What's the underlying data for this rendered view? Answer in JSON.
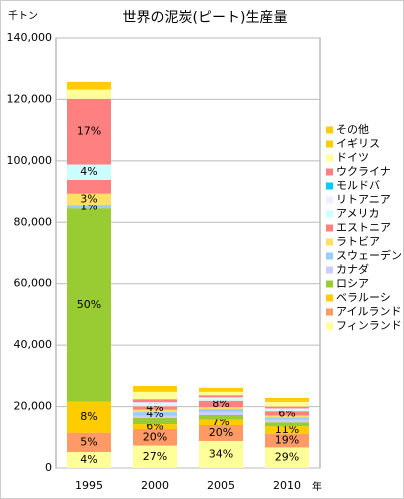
{
  "chart_data": {
    "type": "stacked_bar",
    "title": "世界の泥炭(ピート)生産量",
    "y_label": "千トン",
    "x_label": "年",
    "categories": [
      "1995",
      "2000",
      "2005",
      "2010"
    ],
    "ylim": [
      0,
      140000
    ],
    "yticks": [
      {
        "value": 0,
        "label": "0"
      },
      {
        "value": 20000,
        "label": "20,000"
      },
      {
        "value": 40000,
        "label": "40,000"
      },
      {
        "value": 60000,
        "label": "60,000"
      },
      {
        "value": 80000,
        "label": "80,000"
      },
      {
        "value": 100000,
        "label": "100,000"
      },
      {
        "value": 120000,
        "label": "120,000"
      },
      {
        "value": 140000,
        "label": "140,000"
      }
    ],
    "grid": true,
    "legend": "right",
    "series": [
      {
        "name": "フィンランド",
        "color": "#ffff99",
        "values": [
          5200,
          7300,
          8800,
          6700
        ],
        "value_labels": [
          "4%",
          "27%",
          "34%",
          "29%"
        ]
      },
      {
        "name": "アイルランド",
        "color": "#ff9966",
        "values": [
          6300,
          5400,
          5200,
          4400
        ],
        "value_labels": [
          "5%",
          "20%",
          "20%",
          "19%"
        ]
      },
      {
        "name": "ベラルーシ",
        "color": "#ffcc00",
        "values": [
          10100,
          1600,
          1800,
          2500
        ],
        "value_labels": [
          "8%",
          "6%",
          "7%",
          "11%"
        ]
      },
      {
        "name": "ロシア",
        "color": "#99cc33",
        "values": [
          63000,
          2000,
          1500,
          1300
        ],
        "value_labels": [
          "50%",
          null,
          null,
          null
        ]
      },
      {
        "name": "カナダ",
        "color": "#ccccff",
        "values": [
          0,
          800,
          900,
          800
        ],
        "value_labels": [
          null,
          null,
          null,
          null
        ]
      },
      {
        "name": "スウェーデン",
        "color": "#99ccff",
        "values": [
          1000,
          1100,
          1000,
          800
        ],
        "value_labels": [
          "1%",
          "4%",
          null,
          null
        ]
      },
      {
        "name": "ラトビア",
        "color": "#ffe066",
        "values": [
          3700,
          800,
          600,
          600
        ],
        "value_labels": [
          "3%",
          null,
          null,
          null
        ]
      },
      {
        "name": "エストニア",
        "color": "#ff8080",
        "values": [
          4500,
          1100,
          2100,
          1400
        ],
        "value_labels": [
          null,
          "4%",
          "8%",
          "6%"
        ]
      },
      {
        "name": "アメリカ",
        "color": "#ccffff",
        "values": [
          5000,
          800,
          700,
          600
        ],
        "value_labels": [
          "4%",
          null,
          null,
          null
        ]
      },
      {
        "name": "リトアニア",
        "color": "#eeeeff",
        "values": [
          0,
          500,
          400,
          300
        ],
        "value_labels": [
          null,
          null,
          null,
          null
        ]
      },
      {
        "name": "モルドバ",
        "color": "#00ccff",
        "values": [
          0,
          0,
          0,
          0
        ],
        "value_labels": [
          null,
          null,
          null,
          null
        ]
      },
      {
        "name": "ウクライナ",
        "color": "#ff8080",
        "values": [
          21400,
          1000,
          700,
          600
        ],
        "value_labels": [
          "17%",
          null,
          null,
          null
        ]
      },
      {
        "name": "ドイツ",
        "color": "#ffff99",
        "values": [
          3000,
          2400,
          1100,
          1500
        ],
        "value_labels": [
          null,
          null,
          null,
          null
        ]
      },
      {
        "name": "イギリス",
        "color": "#ffcc00",
        "values": [
          1000,
          900,
          600,
          600
        ],
        "value_labels": [
          null,
          null,
          null,
          null
        ]
      },
      {
        "name": "その他",
        "color": "#ffcc00",
        "values": [
          1500,
          1000,
          700,
          700
        ],
        "value_labels": [
          null,
          null,
          null,
          null
        ]
      }
    ]
  }
}
